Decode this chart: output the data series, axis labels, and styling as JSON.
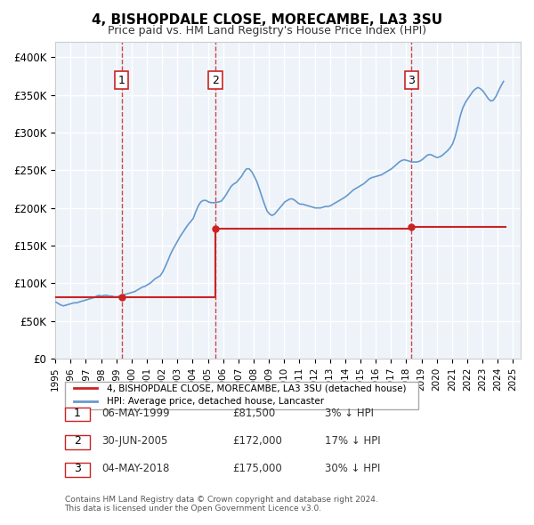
{
  "title": "4, BISHOPDALE CLOSE, MORECAMBE, LA3 3SU",
  "subtitle": "Price paid vs. HM Land Registry's House Price Index (HPI)",
  "ylabel_ticks": [
    "£0",
    "£50K",
    "£100K",
    "£150K",
    "£200K",
    "£250K",
    "£300K",
    "£350K",
    "£400K"
  ],
  "ytick_values": [
    0,
    50000,
    100000,
    150000,
    200000,
    250000,
    300000,
    350000,
    400000
  ],
  "ylim": [
    0,
    420000
  ],
  "xlim_start": 1995.0,
  "xlim_end": 2025.5,
  "hpi_color": "#6699cc",
  "price_color": "#cc2222",
  "sale_color": "#cc2222",
  "vline_color": "#cc3333",
  "background_color": "#eef3fa",
  "grid_color": "#ffffff",
  "legend_box_color": "#dddddd",
  "sale1_date": 1999.35,
  "sale1_price": 81500,
  "sale2_date": 2005.5,
  "sale2_price": 172000,
  "sale3_date": 2018.34,
  "sale3_price": 175000,
  "table_entries": [
    {
      "num": "1",
      "date": "06-MAY-1999",
      "price": "£81,500",
      "pct": "3% ↓ HPI"
    },
    {
      "num": "2",
      "date": "30-JUN-2005",
      "price": "£172,000",
      "pct": "17% ↓ HPI"
    },
    {
      "num": "3",
      "date": "04-MAY-2018",
      "price": "£175,000",
      "pct": "30% ↓ HPI"
    }
  ],
  "legend1": "4, BISHOPDALE CLOSE, MORECAMBE, LA3 3SU (detached house)",
  "legend2": "HPI: Average price, detached house, Lancaster",
  "footnote": "Contains HM Land Registry data © Crown copyright and database right 2024.\nThis data is licensed under the Open Government Licence v3.0.",
  "hpi_data": {
    "years": [
      1995.04,
      1995.21,
      1995.38,
      1995.54,
      1995.71,
      1995.88,
      1996.04,
      1996.21,
      1996.38,
      1996.54,
      1996.71,
      1996.88,
      1997.04,
      1997.21,
      1997.38,
      1997.54,
      1997.71,
      1997.88,
      1998.04,
      1998.21,
      1998.38,
      1998.54,
      1998.71,
      1998.88,
      1999.04,
      1999.21,
      1999.38,
      1999.54,
      1999.71,
      1999.88,
      2000.04,
      2000.21,
      2000.38,
      2000.54,
      2000.71,
      2000.88,
      2001.04,
      2001.21,
      2001.38,
      2001.54,
      2001.71,
      2001.88,
      2002.04,
      2002.21,
      2002.38,
      2002.54,
      2002.71,
      2002.88,
      2003.04,
      2003.21,
      2003.38,
      2003.54,
      2003.71,
      2003.88,
      2004.04,
      2004.21,
      2004.38,
      2004.54,
      2004.71,
      2004.88,
      2005.04,
      2005.21,
      2005.38,
      2005.54,
      2005.71,
      2005.88,
      2006.04,
      2006.21,
      2006.38,
      2006.54,
      2006.71,
      2006.88,
      2007.04,
      2007.21,
      2007.38,
      2007.54,
      2007.71,
      2007.88,
      2008.04,
      2008.21,
      2008.38,
      2008.54,
      2008.71,
      2008.88,
      2009.04,
      2009.21,
      2009.38,
      2009.54,
      2009.71,
      2009.88,
      2010.04,
      2010.21,
      2010.38,
      2010.54,
      2010.71,
      2010.88,
      2011.04,
      2011.21,
      2011.38,
      2011.54,
      2011.71,
      2011.88,
      2012.04,
      2012.21,
      2012.38,
      2012.54,
      2012.71,
      2012.88,
      2013.04,
      2013.21,
      2013.38,
      2013.54,
      2013.71,
      2013.88,
      2014.04,
      2014.21,
      2014.38,
      2014.54,
      2014.71,
      2014.88,
      2015.04,
      2015.21,
      2015.38,
      2015.54,
      2015.71,
      2015.88,
      2016.04,
      2016.21,
      2016.38,
      2016.54,
      2016.71,
      2016.88,
      2017.04,
      2017.21,
      2017.38,
      2017.54,
      2017.71,
      2017.88,
      2018.04,
      2018.21,
      2018.38,
      2018.54,
      2018.71,
      2018.88,
      2019.04,
      2019.21,
      2019.38,
      2019.54,
      2019.71,
      2019.88,
      2020.04,
      2020.21,
      2020.38,
      2020.54,
      2020.71,
      2020.88,
      2021.04,
      2021.21,
      2021.38,
      2021.54,
      2021.71,
      2021.88,
      2022.04,
      2022.21,
      2022.38,
      2022.54,
      2022.71,
      2022.88,
      2023.04,
      2023.21,
      2023.38,
      2023.54,
      2023.71,
      2023.88,
      2024.04,
      2024.21,
      2024.38
    ],
    "prices": [
      75000,
      73000,
      71000,
      70000,
      71000,
      72000,
      73000,
      74000,
      74000,
      75000,
      76000,
      77000,
      78000,
      79000,
      80000,
      81000,
      83000,
      84000,
      83000,
      84000,
      84000,
      83000,
      83000,
      82000,
      82000,
      83000,
      84000,
      85000,
      86000,
      87000,
      88000,
      89000,
      91000,
      93000,
      95000,
      96000,
      98000,
      100000,
      103000,
      106000,
      108000,
      110000,
      115000,
      122000,
      130000,
      138000,
      145000,
      151000,
      157000,
      163000,
      168000,
      173000,
      178000,
      182000,
      186000,
      195000,
      203000,
      208000,
      210000,
      210000,
      208000,
      207000,
      207000,
      207000,
      208000,
      209000,
      213000,
      218000,
      224000,
      229000,
      232000,
      234000,
      238000,
      242000,
      248000,
      252000,
      252000,
      248000,
      242000,
      235000,
      225000,
      215000,
      205000,
      196000,
      192000,
      190000,
      192000,
      196000,
      200000,
      204000,
      208000,
      210000,
      212000,
      212000,
      210000,
      207000,
      205000,
      205000,
      204000,
      203000,
      202000,
      201000,
      200000,
      200000,
      200000,
      201000,
      202000,
      202000,
      203000,
      205000,
      207000,
      209000,
      211000,
      213000,
      215000,
      218000,
      221000,
      224000,
      226000,
      228000,
      230000,
      232000,
      235000,
      238000,
      240000,
      241000,
      242000,
      243000,
      244000,
      246000,
      248000,
      250000,
      252000,
      255000,
      258000,
      261000,
      263000,
      264000,
      263000,
      262000,
      261000,
      261000,
      261000,
      262000,
      264000,
      267000,
      270000,
      271000,
      270000,
      268000,
      267000,
      268000,
      270000,
      273000,
      276000,
      280000,
      285000,
      295000,
      308000,
      322000,
      333000,
      340000,
      345000,
      350000,
      355000,
      358000,
      360000,
      358000,
      355000,
      350000,
      345000,
      342000,
      343000,
      348000,
      355000,
      362000,
      368000
    ]
  },
  "price_line_data": {
    "years": [
      1999.35,
      1999.35,
      2005.5,
      2005.5,
      2018.34,
      2018.34
    ],
    "prices": [
      81500,
      81500,
      172000,
      172000,
      175000,
      175000
    ]
  }
}
